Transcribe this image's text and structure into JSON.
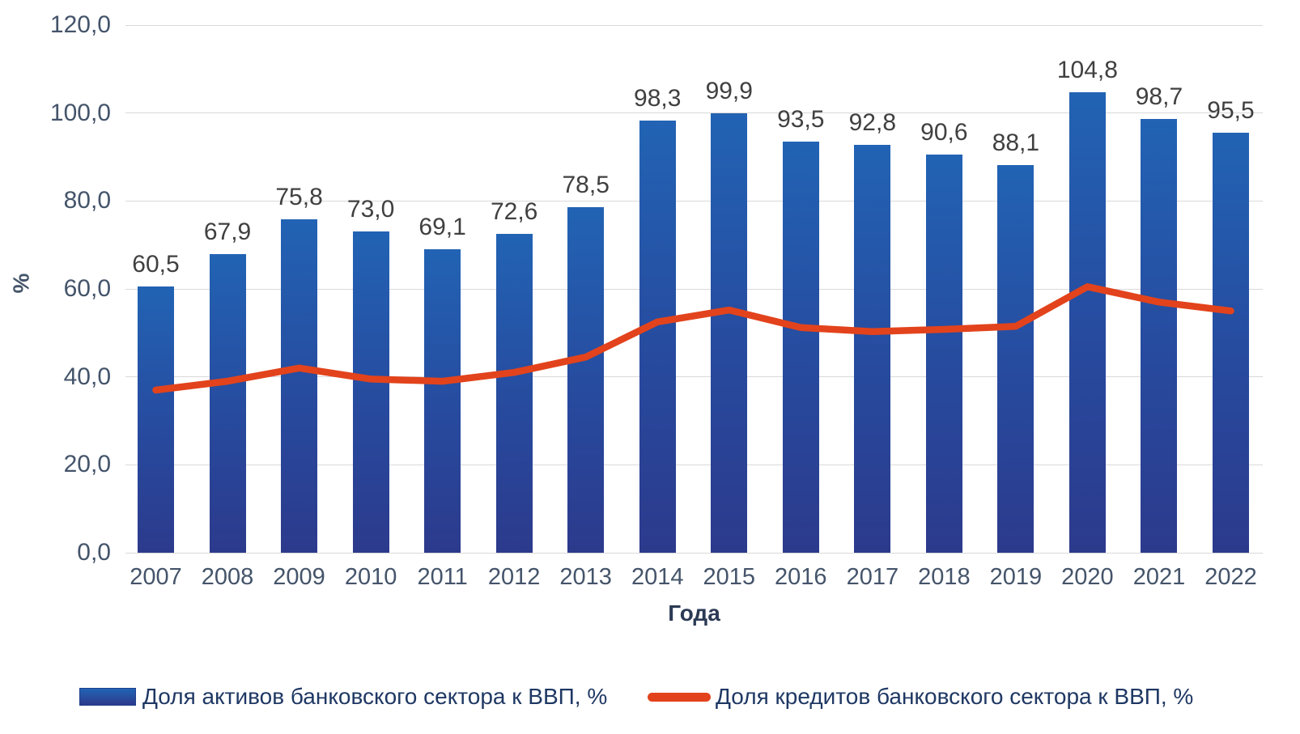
{
  "chart_data": {
    "type": "bar",
    "subtype": "bar-with-line-overlay",
    "title": "",
    "categories": [
      "2007",
      "2008",
      "2009",
      "2010",
      "2011",
      "2012",
      "2013",
      "2014",
      "2015",
      "2016",
      "2017",
      "2018",
      "2019",
      "2020",
      "2021",
      "2022"
    ],
    "series": [
      {
        "name": "Доля активов банковского сектора к ВВП, %",
        "type": "bar",
        "values": [
          60.5,
          67.9,
          75.8,
          73.0,
          69.1,
          72.6,
          78.5,
          98.3,
          99.9,
          93.5,
          92.8,
          90.6,
          88.1,
          104.8,
          98.7,
          95.5
        ],
        "data_labels": [
          "60,5",
          "67,9",
          "75,8",
          "73,0",
          "69,1",
          "72,6",
          "78,5",
          "98,3",
          "99,9",
          "93,5",
          "92,8",
          "90,6",
          "88,1",
          "104,8",
          "98,7",
          "95,5"
        ]
      },
      {
        "name": "Доля кредитов банковского сектора к ВВП, %",
        "type": "line",
        "values": [
          37.0,
          39.0,
          42.0,
          39.5,
          39.0,
          41.0,
          44.5,
          52.5,
          55.2,
          51.2,
          50.3,
          50.8,
          51.5,
          60.5,
          57.0,
          55.0
        ]
      }
    ],
    "xlabel": "Года",
    "ylabel": "%",
    "ylim": [
      0,
      120
    ],
    "ytick_step": 20,
    "ytick_labels": [
      "0,0",
      "20,0",
      "40,0",
      "60,0",
      "80,0",
      "100,0",
      "120,0"
    ],
    "grid": true,
    "legend_position": "bottom",
    "colors": {
      "bar_top": "#2263b4",
      "bar_bottom": "#2c3a8c",
      "line": "#E2431C",
      "gridline": "#d9d9d9",
      "tick_text": "#44546A",
      "value_label_text": "#404040",
      "legend_text": "#1F3864"
    }
  }
}
